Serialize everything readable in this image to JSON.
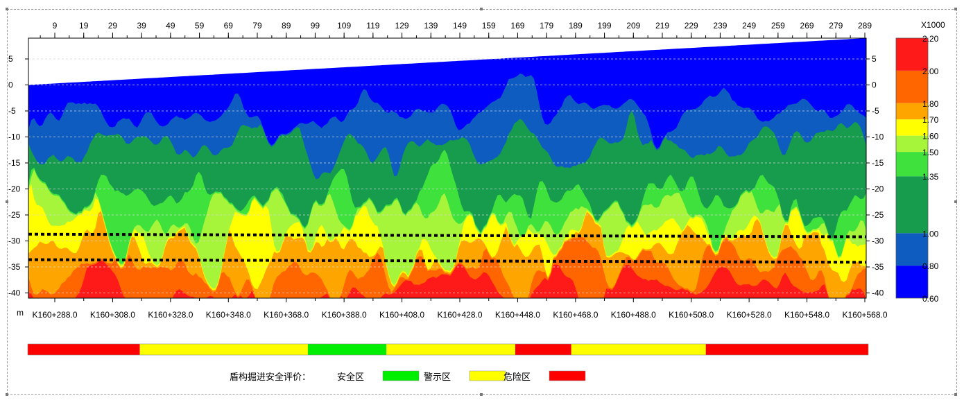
{
  "chart_data": {
    "type": "heatmap",
    "title": "",
    "top_axis": {
      "ticks": [
        "9",
        "19",
        "29",
        "39",
        "49",
        "59",
        "69",
        "79",
        "89",
        "99",
        "109",
        "119",
        "129",
        "139",
        "149",
        "159",
        "169",
        "179",
        "189",
        "199",
        "209",
        "219",
        "229",
        "239",
        "249",
        "259",
        "269",
        "279",
        "289"
      ]
    },
    "y_axis": {
      "unit": "m",
      "range": [
        -41,
        9
      ],
      "ticks": [
        5,
        0,
        -5,
        -10,
        -15,
        -20,
        -25,
        -30,
        -35,
        -40
      ],
      "tick_labels": [
        "5",
        "0",
        "-5",
        "-10",
        "-15",
        "-20",
        "-25",
        "-30",
        "-35",
        "-40"
      ]
    },
    "x_axis": {
      "labels": [
        "K160+288.0",
        "K160+308.0",
        "K160+328.0",
        "K160+348.0",
        "K160+368.0",
        "K160+388.0",
        "K160+408.0",
        "K160+428.0",
        "K160+448.0",
        "K160+468.0",
        "K160+488.0",
        "K160+508.0",
        "K160+528.0",
        "K160+548.0",
        "K160+568.0"
      ]
    },
    "surface_elevation": [
      0,
      9
    ],
    "dashed_lines": [
      {
        "start": -28.7,
        "end": -29.2
      },
      {
        "start": -33.6,
        "end": -34.1
      }
    ],
    "colorbar": {
      "multiplier_label": "X1000",
      "levels": [
        0.6,
        0.8,
        1.0,
        1.35,
        1.5,
        1.6,
        1.7,
        1.8,
        2.0,
        2.2
      ],
      "level_labels": [
        "0.60",
        "0.80",
        "1.00",
        "1.35",
        "1.50",
        "1.60",
        "1.70",
        "1.80",
        "2.00",
        "2.20"
      ],
      "colors": [
        "#0000ff",
        "#0e5cc0",
        "#169c4c",
        "#3fe23d",
        "#a7f53a",
        "#ffff00",
        "#ffa500",
        "#ff6600",
        "#ff1a1a"
      ]
    },
    "safety_bar": {
      "segments": [
        {
          "start": 0,
          "end": 20,
          "level": "danger"
        },
        {
          "start": 20,
          "end": 50,
          "level": "warning"
        },
        {
          "start": 50,
          "end": 64,
          "level": "safe"
        },
        {
          "start": 64,
          "end": 87,
          "level": "warning"
        },
        {
          "start": 87,
          "end": 97,
          "level": "danger"
        },
        {
          "start": 97,
          "end": 121,
          "level": "warning"
        },
        {
          "start": 121,
          "end": 150,
          "level": "danger"
        }
      ]
    },
    "legend": {
      "title": "盾构掘进安全评价：",
      "items": [
        {
          "label": "安全区",
          "color": "#00ee00"
        },
        {
          "label": "警示区",
          "color": "#ffff00"
        },
        {
          "label": "危险区",
          "color": "#ff0000"
        }
      ]
    }
  },
  "colors": {
    "danger": "#ff0000",
    "warning": "#ffff00",
    "safe": "#00ee00"
  }
}
